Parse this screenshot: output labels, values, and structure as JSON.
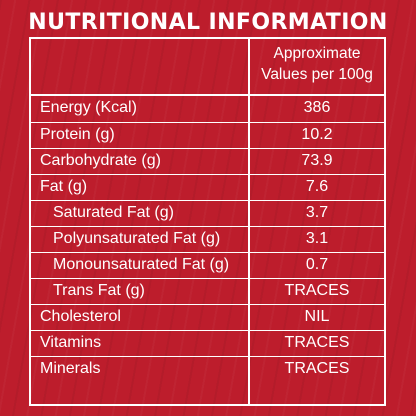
{
  "title": "NUTRITIONAL INFORMATION",
  "header": {
    "value_line1": "Approximate",
    "value_line2": "Values per 100g"
  },
  "rows": [
    {
      "label": "Energy (Kcal)",
      "value": "386"
    },
    {
      "label": "Protein (g)",
      "value": "10.2"
    },
    {
      "label": "Carbohydrate (g)",
      "value": "73.9"
    },
    {
      "label": "Fat (g)",
      "value": "7.6"
    },
    {
      "label": "Saturated Fat (g)",
      "value": "3.7"
    },
    {
      "label": "Polyunsaturated Fat (g)",
      "value": "3.1"
    },
    {
      "label": "Monounsaturated Fat (g)",
      "value": "0.7"
    },
    {
      "label": "Trans Fat (g)",
      "value": "TRACES"
    },
    {
      "label": "Cholesterol",
      "value": "NIL"
    },
    {
      "label": "Vitamins",
      "value": "TRACES"
    },
    {
      "label": "Minerals",
      "value": "TRACES"
    }
  ],
  "colors": {
    "background": "#bd1d2c",
    "text": "#ffffff",
    "border": "#ffffff"
  }
}
